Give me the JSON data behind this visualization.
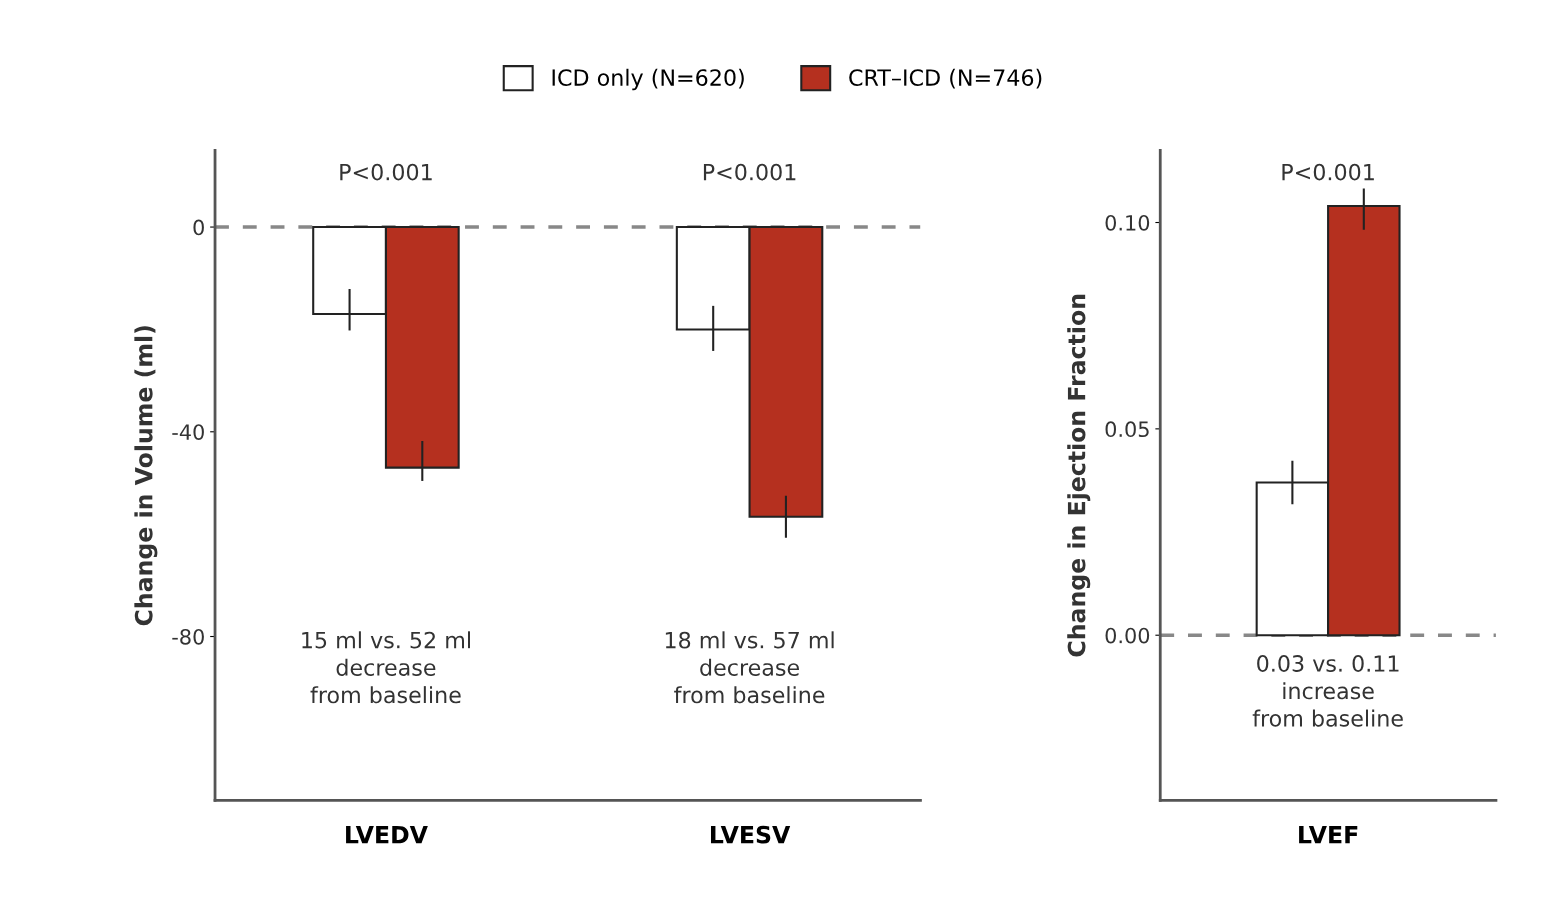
{
  "chart_data": [
    {
      "type": "bar",
      "categories": [
        "LVEDV",
        "LVESV"
      ],
      "ylabel": "Change in Volume (ml)",
      "ylim": [
        -112,
        15
      ],
      "yticks": [
        0,
        -40,
        -80
      ],
      "legend": "top",
      "series": [
        {
          "name": "ICD only (N=620)",
          "color": "#ffffff",
          "values": [
            -17,
            -20
          ],
          "errors": [
            [
              -20,
              -12.3
            ],
            [
              -24,
              -15.6
            ]
          ]
        },
        {
          "name": "CRT–ICD (N=746)",
          "color": "#b5301f",
          "values": [
            -47,
            -56.6
          ],
          "errors": [
            [
              -49.4,
              -42
            ],
            [
              -60.5,
              -52.7
            ]
          ]
        }
      ],
      "ref_lines": [
        {
          "axis": "y",
          "value": 0,
          "color": "#888888",
          "line_style": "dashed"
        }
      ],
      "annotations": [
        "P<0.001",
        "P<0.001",
        "15 ml vs. 52 ml\ndecrease\nfrom baseline",
        "18 ml vs. 57 ml\ndecrease\nfrom baseline"
      ]
    },
    {
      "type": "bar",
      "categories": [
        "LVEF"
      ],
      "ylabel": "Change in Ejection Fraction",
      "ylim": [
        -0.04,
        0.1175
      ],
      "yticks": [
        {
          "value": 0.1,
          "label": "0.10"
        },
        {
          "value": 0.05,
          "label": "0.05"
        },
        {
          "value": 0.0,
          "label": "0.00"
        }
      ],
      "series": [
        {
          "color": "#ffffff",
          "values": [
            0.037
          ],
          "errors": [
            [
              0.032,
              0.042
            ]
          ]
        },
        {
          "color": "#b5301f",
          "values": [
            0.104
          ],
          "errors": [
            [
              0.0985,
              0.108
            ]
          ]
        }
      ],
      "ref_lines": [
        {
          "axis": "y",
          "value": 0,
          "color": "#888888",
          "line_style": "dashed"
        }
      ],
      "annotations": [
        "P<0.001",
        "0.03 vs. 0.11\nincrease\nfrom baseline"
      ]
    }
  ]
}
